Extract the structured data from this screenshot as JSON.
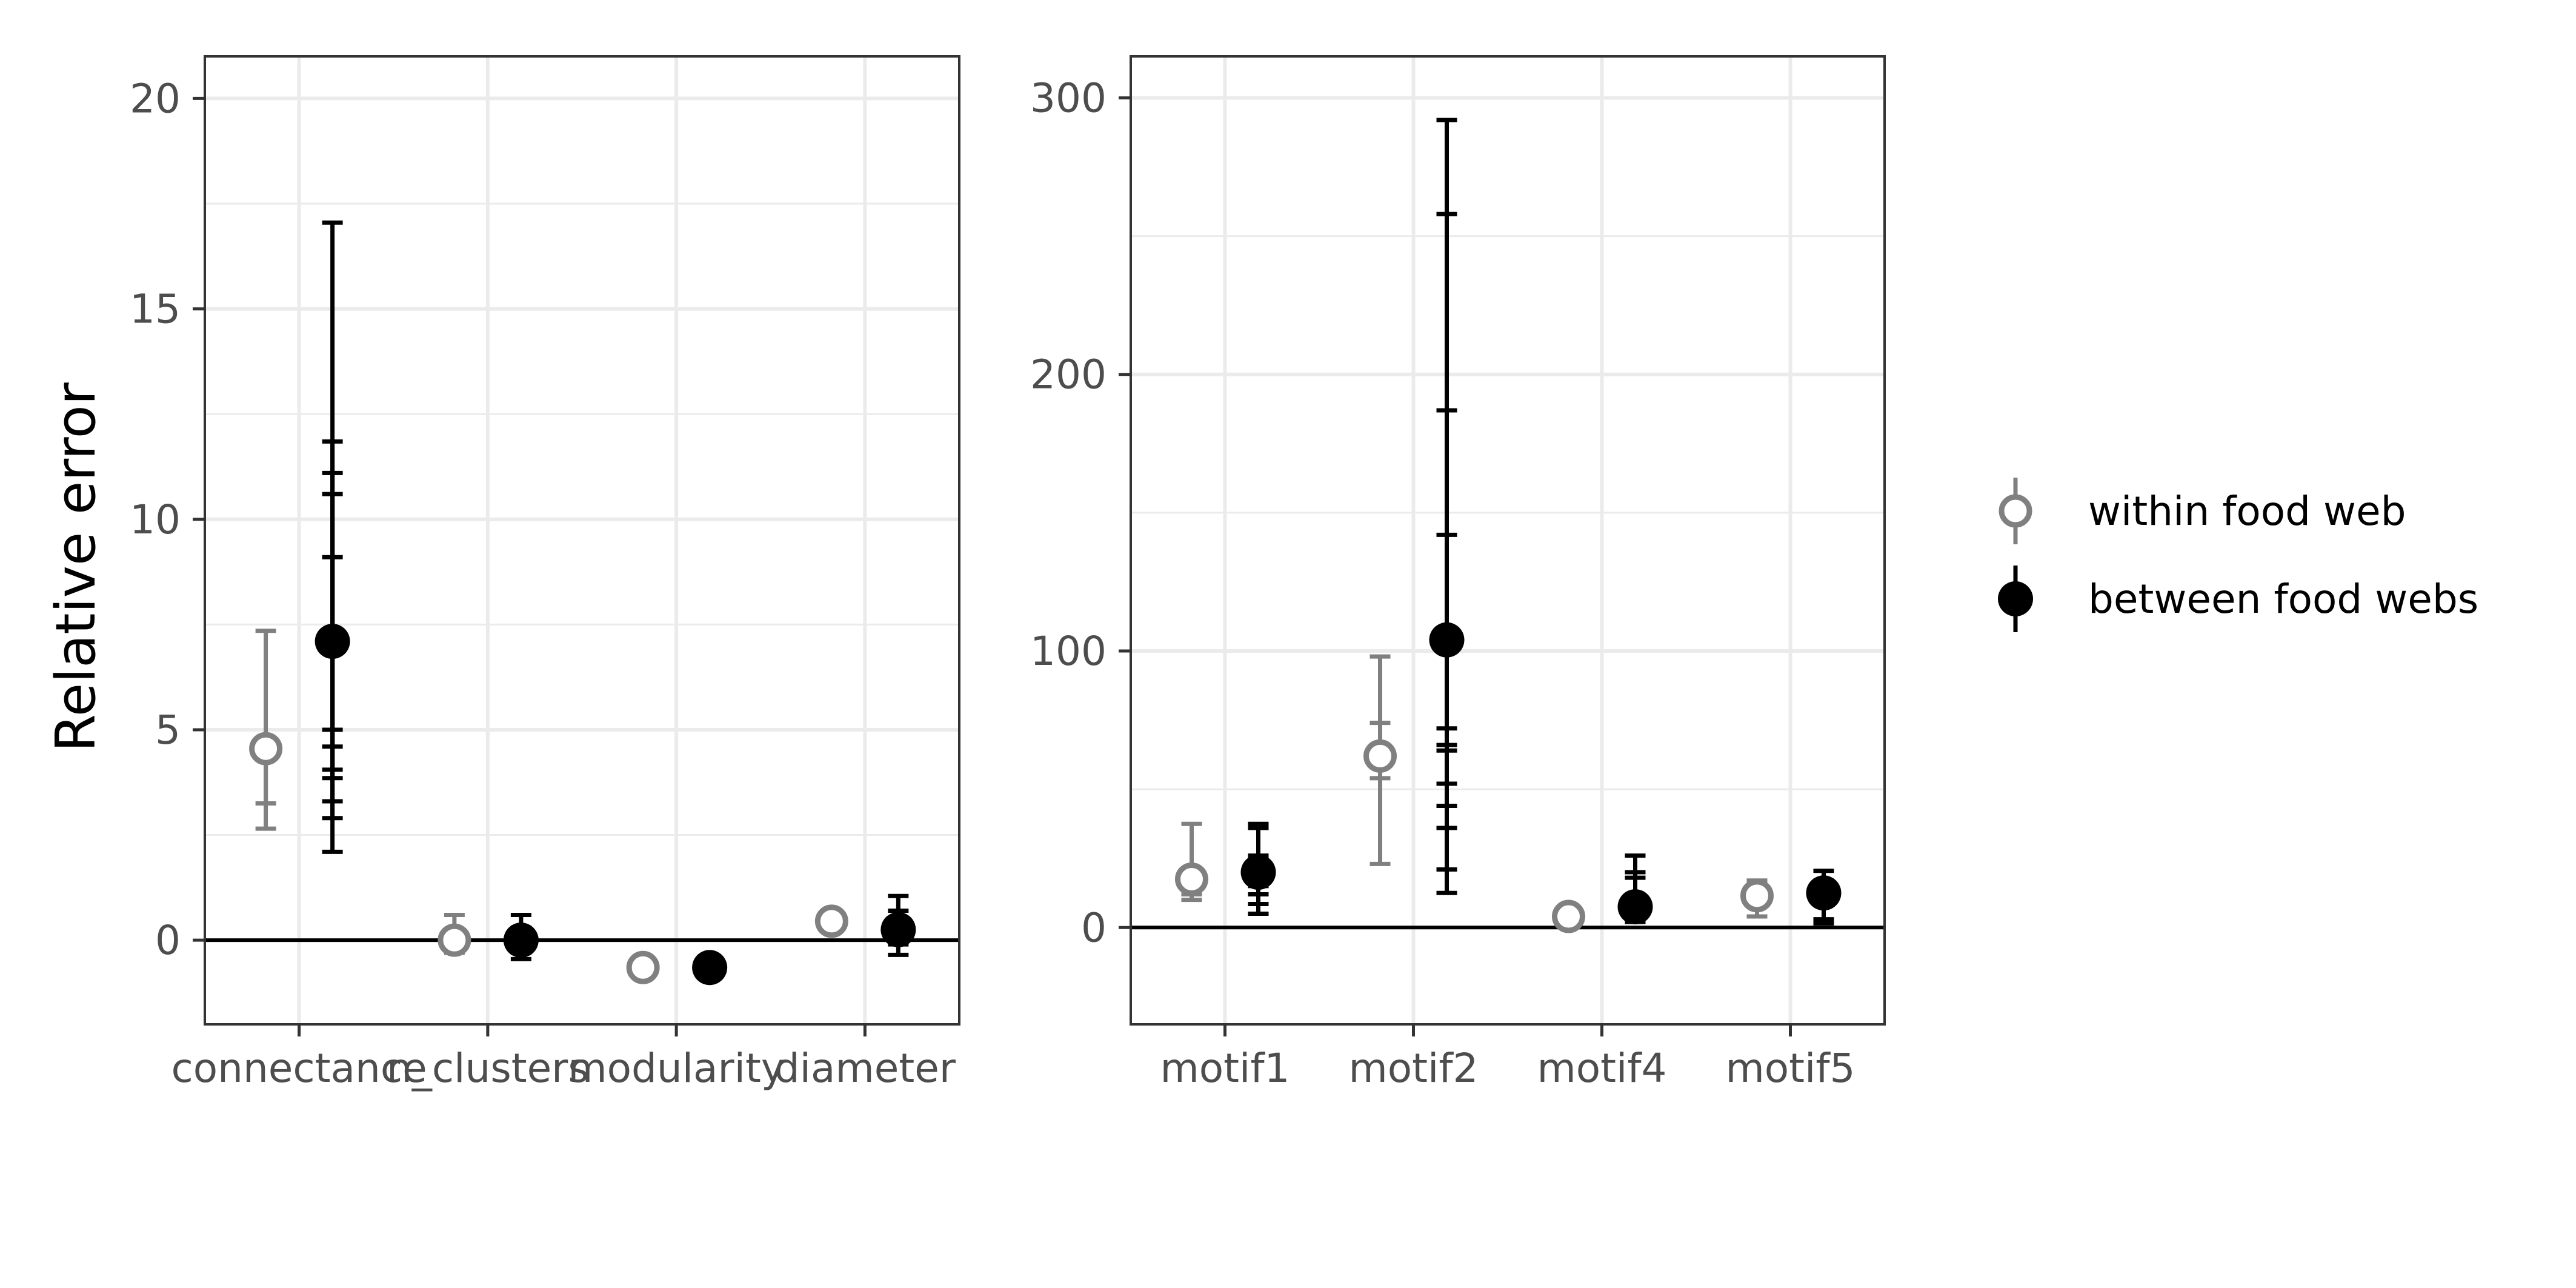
{
  "figure": {
    "ylabel": "Relative error",
    "legend": {
      "position": "right",
      "entries": [
        {
          "name": "within food web",
          "style": "open-circle",
          "color": "#808080"
        },
        {
          "name": "between food webs",
          "style": "filled-circle",
          "color": "#000000"
        }
      ]
    },
    "colors": {
      "within": "#808080",
      "between": "#000000",
      "grid": "#ebebeb",
      "panel_border": "#333333"
    }
  },
  "chart_data": [
    {
      "type": "scatter",
      "subtype": "point-with-errorbars",
      "panel": "left",
      "categories": [
        "connectance",
        "n_clusters",
        "modularity",
        "diameter"
      ],
      "ylim": [
        -2,
        21
      ],
      "yticks": [
        0,
        5,
        10,
        15,
        20
      ],
      "grid": true,
      "hline": 0,
      "series": [
        {
          "name": "within food web",
          "points": [
            4.55,
            0.0,
            -0.65,
            0.45
          ],
          "errorbars": [
            [
              [
                2.65,
                7.35
              ],
              [
                3.25,
                4.75
              ]
            ],
            [
              [
                -0.3,
                0.6
              ]
            ],
            [
              [
                -0.75,
                -0.55
              ]
            ],
            [
              [
                0.35,
                0.55
              ]
            ]
          ]
        },
        {
          "name": "between food webs",
          "points": [
            7.1,
            0.0,
            -0.65,
            0.25
          ],
          "errorbars": [
            [
              [
                2.1,
                17.05
              ],
              [
                2.9,
                11.85
              ],
              [
                3.3,
                11.1
              ],
              [
                3.85,
                10.6
              ],
              [
                4.05,
                9.1
              ],
              [
                4.6,
                5.0
              ]
            ],
            [
              [
                -0.45,
                0.6
              ],
              [
                -0.3,
                0.3
              ]
            ],
            [
              [
                -0.72,
                -0.58
              ]
            ],
            [
              [
                -0.35,
                1.05
              ],
              [
                -0.1,
                0.7
              ]
            ]
          ]
        }
      ]
    },
    {
      "type": "scatter",
      "subtype": "point-with-errorbars",
      "panel": "right",
      "categories": [
        "motif1",
        "motif2",
        "motif4",
        "motif5"
      ],
      "ylim": [
        -35,
        315
      ],
      "yticks": [
        0,
        100,
        200,
        300
      ],
      "grid": true,
      "hline": 0,
      "series": [
        {
          "name": "within food web",
          "points": [
            17.5,
            62,
            4,
            11.5
          ],
          "errorbars": [
            [
              [
                10,
                37.5
              ],
              [
                12,
                20
              ]
            ],
            [
              [
                23,
                98
              ],
              [
                54,
                74
              ]
            ],
            [
              [
                1.5,
                7
              ]
            ],
            [
              [
                4,
                17
              ]
            ]
          ]
        },
        {
          "name": "between food webs",
          "points": [
            20,
            104,
            7.5,
            12.5
          ],
          "errorbars": [
            [
              [
                5,
                37.5
              ],
              [
                8.5,
                36
              ],
              [
                12,
                26
              ],
              [
                15,
                25
              ]
            ],
            [
              [
                12.5,
                292
              ],
              [
                21,
                258
              ],
              [
                36,
                187
              ],
              [
                44,
                142
              ],
              [
                52,
                72
              ],
              [
                64,
                66
              ]
            ],
            [
              [
                2,
                26
              ],
              [
                4,
                20
              ],
              [
                6,
                18
              ]
            ],
            [
              [
                1.5,
                20.5
              ],
              [
                3,
                17
              ]
            ]
          ]
        }
      ]
    }
  ]
}
